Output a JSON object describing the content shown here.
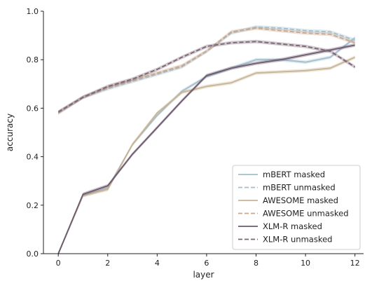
{
  "chart_data": {
    "type": "line",
    "xlabel": "layer",
    "ylabel": "accuracy",
    "xlim": [
      -0.6,
      12.35
    ],
    "ylim": [
      0.0,
      1.0
    ],
    "xticks": [
      0,
      2,
      4,
      6,
      8,
      10,
      12
    ],
    "yticks": [
      0.0,
      0.2,
      0.4,
      0.6,
      0.8,
      1.0
    ],
    "xtick_labels": [
      "0",
      "2",
      "4",
      "6",
      "8",
      "10",
      "12"
    ],
    "ytick_labels": [
      "0.0",
      "0.2",
      "0.4",
      "0.6",
      "0.8",
      "1.0"
    ],
    "grid": false,
    "legend_position": "lower-right",
    "x": [
      0,
      1,
      2,
      3,
      4,
      5,
      6,
      7,
      8,
      9,
      10,
      11,
      12
    ],
    "series": [
      {
        "name": "mBERT masked",
        "color": "#a3bfcf",
        "dashed": false,
        "values": [
          0.0,
          0.24,
          0.27,
          0.45,
          0.57,
          0.67,
          0.73,
          0.765,
          0.8,
          0.8,
          0.79,
          0.81,
          0.89
        ]
      },
      {
        "name": "mBERT unmasked",
        "color": "#a3bfcf",
        "dashed": true,
        "values": [
          0.58,
          0.645,
          0.68,
          0.71,
          0.74,
          0.77,
          0.835,
          0.91,
          0.935,
          0.93,
          0.92,
          0.915,
          0.88
        ]
      },
      {
        "name": "AWESOME masked",
        "color": "#c8b496",
        "dashed": false,
        "values": [
          0.0,
          0.24,
          0.265,
          0.45,
          0.58,
          0.665,
          0.69,
          0.705,
          0.745,
          0.75,
          0.755,
          0.765,
          0.81
        ]
      },
      {
        "name": "AWESOME unmasked",
        "color": "#c8a890",
        "dashed": true,
        "values": [
          0.58,
          0.645,
          0.685,
          0.715,
          0.745,
          0.775,
          0.835,
          0.915,
          0.93,
          0.92,
          0.91,
          0.905,
          0.87
        ]
      },
      {
        "name": "XLM-R masked",
        "color": "#6c5a6e",
        "dashed": false,
        "values": [
          0.0,
          0.245,
          0.28,
          0.41,
          0.52,
          0.63,
          0.735,
          0.765,
          0.785,
          0.8,
          0.82,
          0.84,
          0.86
        ]
      },
      {
        "name": "XLM-R unmasked",
        "color": "#7a6574",
        "dashed": true,
        "values": [
          0.585,
          0.645,
          0.69,
          0.72,
          0.76,
          0.81,
          0.855,
          0.87,
          0.875,
          0.865,
          0.855,
          0.835,
          0.77
        ]
      }
    ]
  }
}
